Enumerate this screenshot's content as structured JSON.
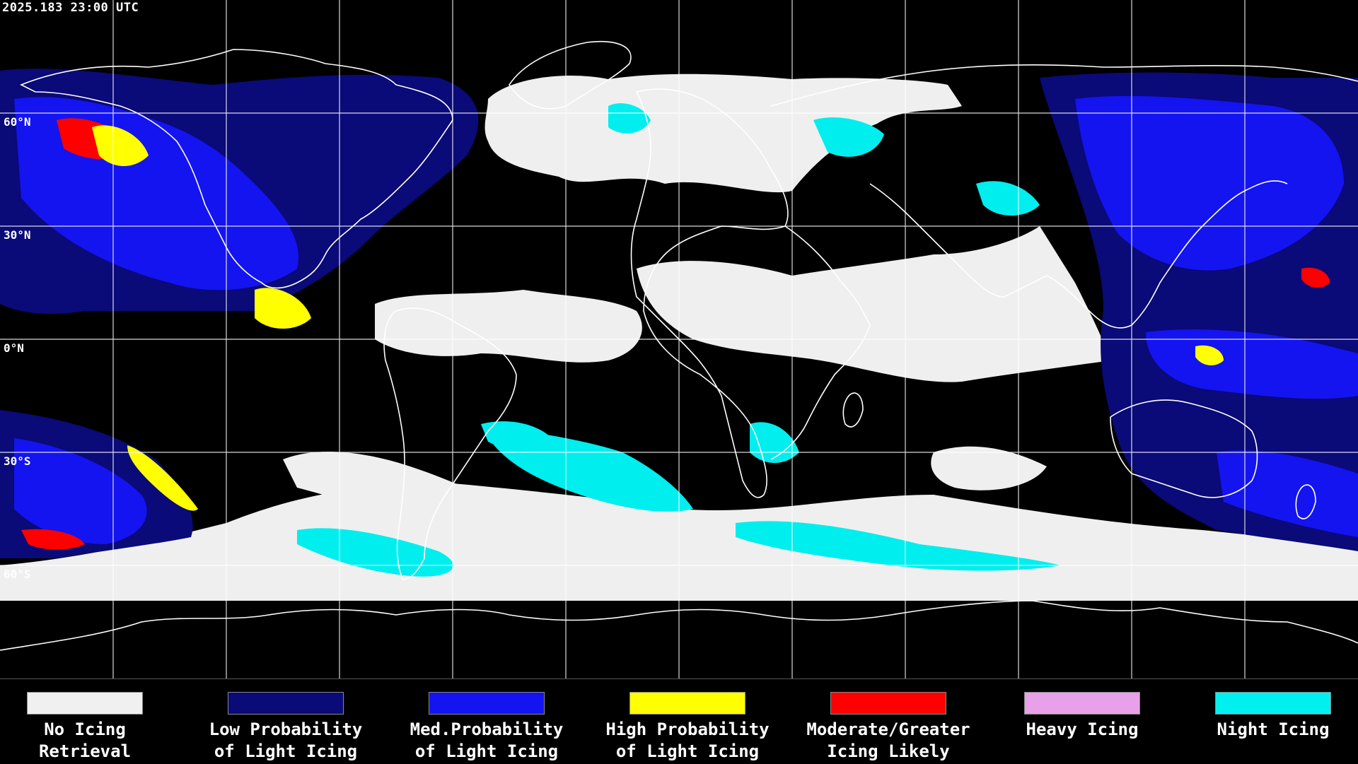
{
  "timestamp": "2025.183 23:00 UTC",
  "latitude_labels": [
    "60°N",
    "30°N",
    "0°N",
    "30°S",
    "60°S"
  ],
  "legend": [
    {
      "label_line1": "No Icing",
      "label_line2": "Retrieval",
      "color": "#f0f0f0"
    },
    {
      "label_line1": "Low Probability",
      "label_line2": "of Light Icing",
      "color": "#0a0a78"
    },
    {
      "label_line1": "Med.Probability",
      "label_line2": "of Light Icing",
      "color": "#1414f0"
    },
    {
      "label_line1": "High Probability",
      "label_line2": "of Light Icing",
      "color": "#ffff00"
    },
    {
      "label_line1": "Moderate/Greater",
      "label_line2": "Icing Likely",
      "color": "#ff0000"
    },
    {
      "label_line1": "Heavy Icing",
      "label_line2": "",
      "color": "#e8a0e8"
    },
    {
      "label_line1": "Night Icing",
      "label_line2": "",
      "color": "#00f0f0"
    }
  ],
  "colors": {
    "background": "#000000",
    "grid": "#ffffff",
    "coastline": "#ffffff"
  }
}
